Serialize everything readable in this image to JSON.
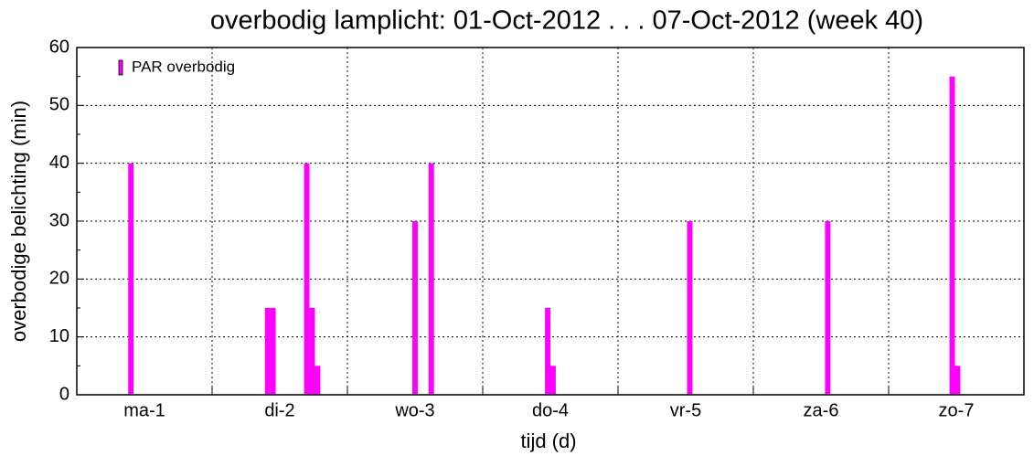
{
  "chart_data": {
    "type": "bar",
    "title": "overbodig lamplicht: 01-Oct-2012 . . . 07-Oct-2012 (week 40)",
    "xlabel": "tijd (d)",
    "ylabel": "overbodige belichting (min)",
    "categories": [
      "ma-1",
      "di-2",
      "wo-3",
      "do-4",
      "vr-5",
      "za-6",
      "zo-7"
    ],
    "xlim": [
      0,
      7
    ],
    "ylim": [
      0,
      60
    ],
    "yticks": [
      0,
      10,
      20,
      30,
      40,
      50,
      60
    ],
    "grid": true,
    "legend": "upper left",
    "series": [
      {
        "name": "PAR overbodig",
        "color": "#ff00ff",
        "x": [
          0.4,
          1.41,
          1.45,
          1.7,
          1.74,
          1.78,
          2.5,
          2.62,
          3.48,
          3.52,
          4.53,
          5.55,
          6.47,
          6.51
        ],
        "values": [
          40,
          15,
          15,
          40,
          15,
          5,
          30,
          40,
          15,
          5,
          30,
          30,
          55,
          5
        ]
      }
    ]
  }
}
